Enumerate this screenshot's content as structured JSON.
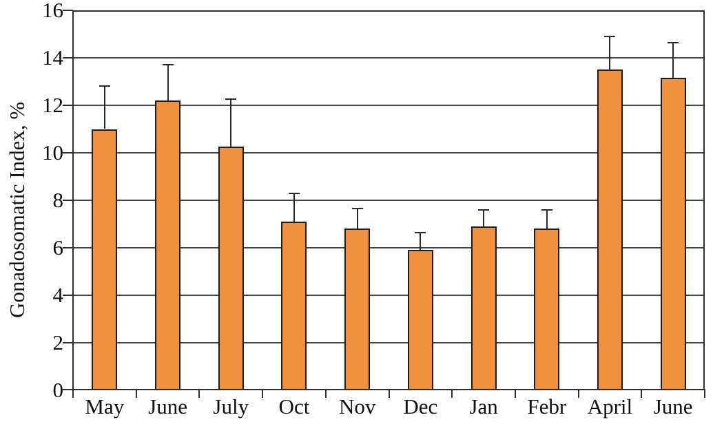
{
  "chart_data": {
    "type": "bar",
    "title": "",
    "xlabel": "",
    "ylabel": "Gonadosomatic Index, %",
    "categories": [
      "May",
      "June",
      "July",
      "Oct",
      "Nov",
      "Dec",
      "Jan",
      "Febr",
      "April",
      "June"
    ],
    "values": [
      11.0,
      12.2,
      10.25,
      7.1,
      6.8,
      5.9,
      6.9,
      6.8,
      13.5,
      13.15
    ],
    "upper_errors": [
      1.8,
      1.5,
      2.0,
      1.2,
      0.85,
      0.75,
      0.7,
      0.8,
      1.4,
      1.5
    ],
    "ylim": [
      0,
      16
    ],
    "ytick_step": 2,
    "ytick_labels": [
      "0",
      "2",
      "4",
      "6",
      "8",
      "10",
      "12",
      "14",
      "16"
    ],
    "grid": "horizontal-on",
    "legend": "none",
    "bar_color": "#F1913D",
    "bar_border_color": "#1c1c1c",
    "error_bar_color": "#2a2a2a",
    "axis_color": "#2e2e2e",
    "gridline_color": "#454545"
  }
}
